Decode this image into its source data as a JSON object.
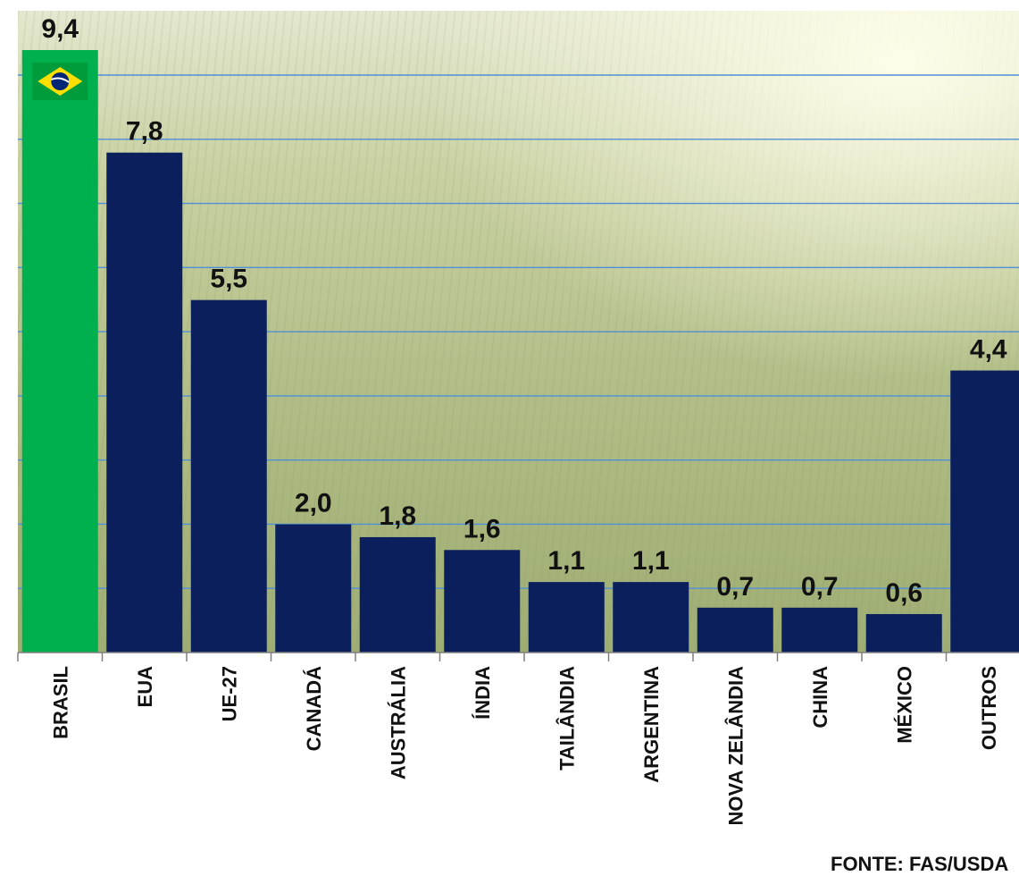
{
  "chart_data": {
    "type": "bar",
    "categories": [
      "BRASIL",
      "EUA",
      "UE-27",
      "CANADÁ",
      "AUSTRÁLIA",
      "ÍNDIA",
      "TAILÂNDIA",
      "ARGENTINA",
      "NOVA ZELÂNDIA",
      "CHINA",
      "MÉXICO",
      "OUTROS"
    ],
    "values": [
      9.4,
      7.8,
      5.5,
      2.0,
      1.8,
      1.6,
      1.1,
      1.1,
      0.7,
      0.7,
      0.6,
      4.4
    ],
    "value_labels": [
      "9,4",
      "7,8",
      "5,5",
      "2,0",
      "1,8",
      "1,6",
      "1,1",
      "1,1",
      "0,7",
      "0,7",
      "0,6",
      "4,4"
    ],
    "highlight_index": 0,
    "ylim": [
      0,
      9.4
    ],
    "grid": true,
    "source": "FONTE: FAS/USDA",
    "colors": {
      "highlight_bar": "#00b04f",
      "bar": "#0a1f5c",
      "gridline": "#4f8fd6",
      "axis": "#7f7f7f",
      "flag_green": "#009c3b",
      "flag_yellow": "#ffdf00",
      "flag_blue": "#002776"
    },
    "highlight_icon": "brazil-flag-icon"
  }
}
